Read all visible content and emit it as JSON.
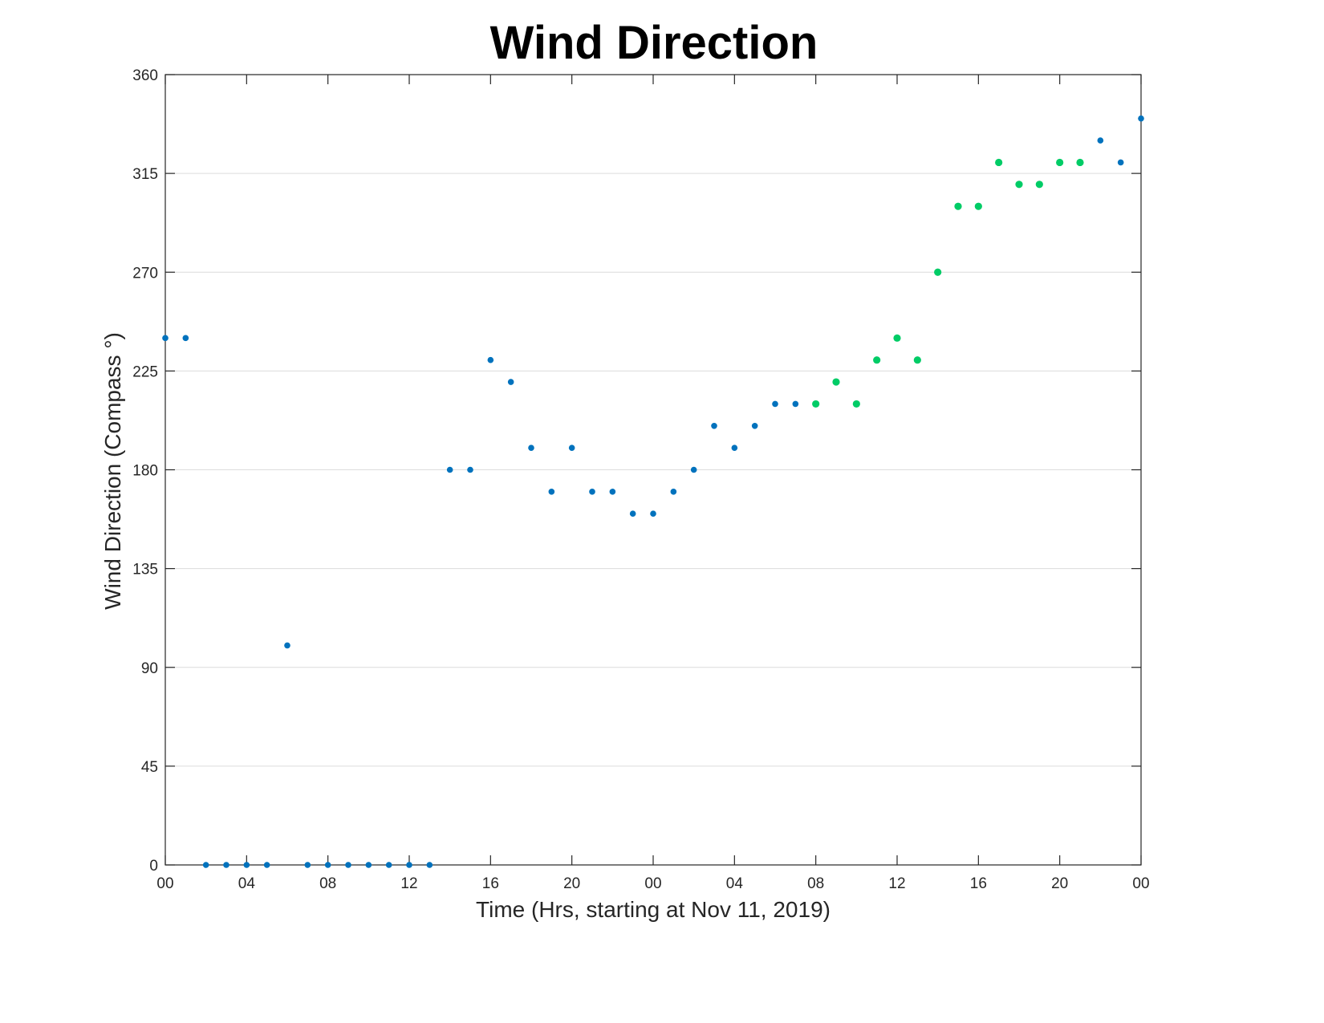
{
  "chart_data": {
    "type": "scatter",
    "title": "Wind Direction",
    "xlabel": "Time (Hrs, starting at Nov 11, 2019)",
    "ylabel": "Wind Direction (Compass °)",
    "xlim": [
      0,
      48
    ],
    "ylim": [
      0,
      360
    ],
    "grid": "horizontal",
    "x_tick_values": [
      0,
      4,
      8,
      12,
      16,
      20,
      24,
      28,
      32,
      36,
      40,
      44,
      48
    ],
    "x_tick_labels": [
      "00",
      "04",
      "08",
      "12",
      "16",
      "20",
      "00",
      "04",
      "08",
      "12",
      "16",
      "20",
      "00"
    ],
    "y_ticks": [
      0,
      45,
      90,
      135,
      180,
      225,
      270,
      315,
      360
    ],
    "series": [
      {
        "color": "#0072BD",
        "points": [
          {
            "x": 0,
            "y": 240
          },
          {
            "x": 1,
            "y": 240
          },
          {
            "x": 2,
            "y": 0
          },
          {
            "x": 3,
            "y": 0
          },
          {
            "x": 4,
            "y": 0
          },
          {
            "x": 5,
            "y": 0
          },
          {
            "x": 6,
            "y": 100
          },
          {
            "x": 7,
            "y": 0
          },
          {
            "x": 8,
            "y": 0
          },
          {
            "x": 9,
            "y": 0
          },
          {
            "x": 10,
            "y": 0
          },
          {
            "x": 11,
            "y": 0
          },
          {
            "x": 12,
            "y": 0
          },
          {
            "x": 13,
            "y": 0
          },
          {
            "x": 14,
            "y": 180
          },
          {
            "x": 15,
            "y": 180
          },
          {
            "x": 16,
            "y": 230
          },
          {
            "x": 17,
            "y": 220
          },
          {
            "x": 18,
            "y": 190
          },
          {
            "x": 19,
            "y": 170
          },
          {
            "x": 20,
            "y": 190
          },
          {
            "x": 21,
            "y": 170
          },
          {
            "x": 22,
            "y": 170
          },
          {
            "x": 23,
            "y": 160
          },
          {
            "x": 24,
            "y": 160
          },
          {
            "x": 25,
            "y": 170
          },
          {
            "x": 26,
            "y": 180
          },
          {
            "x": 27,
            "y": 200
          },
          {
            "x": 28,
            "y": 190
          },
          {
            "x": 29,
            "y": 200
          },
          {
            "x": 30,
            "y": 210
          },
          {
            "x": 31,
            "y": 210
          },
          {
            "x": 46,
            "y": 330
          },
          {
            "x": 47,
            "y": 320
          },
          {
            "x": 48,
            "y": 340
          }
        ]
      },
      {
        "color": "#00CC66",
        "points": [
          {
            "x": 32,
            "y": 210
          },
          {
            "x": 33,
            "y": 220
          },
          {
            "x": 34,
            "y": 210
          },
          {
            "x": 35,
            "y": 230
          },
          {
            "x": 36,
            "y": 240
          },
          {
            "x": 37,
            "y": 230
          },
          {
            "x": 38,
            "y": 270
          },
          {
            "x": 39,
            "y": 300
          },
          {
            "x": 40,
            "y": 300
          },
          {
            "x": 41,
            "y": 320
          },
          {
            "x": 42,
            "y": 310
          },
          {
            "x": 43,
            "y": 310
          },
          {
            "x": 44,
            "y": 320
          },
          {
            "x": 45,
            "y": 320
          }
        ]
      }
    ]
  }
}
